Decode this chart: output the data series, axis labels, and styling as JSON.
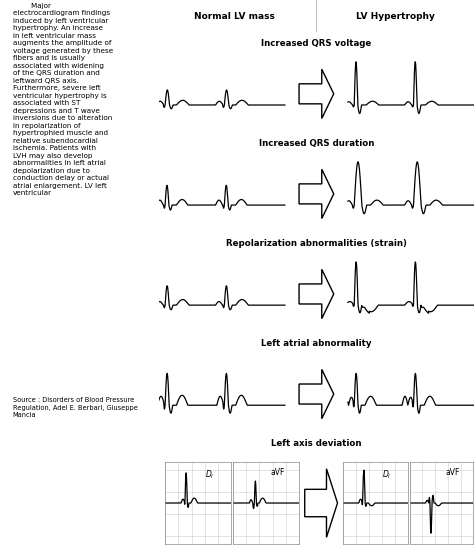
{
  "title_left": "        Major\nelectrocardiogram findings\ninduced by left ventricular\nhypertrophy. An increase\nin left ventricular mass\naugments the amplitude of\nvoltage generated by these\nfibers and is usually\nassociated with widening\nof the QRS duration and\nleftward QRS axis.\nFurthermore, severe left\nventricular hypertrophy is\nassociated with ST\ndepressions and T wave\ninversions due to alteration\nin repolarization of\nhypertrophied muscle and\nrelative subendocardial\nischemia. Patients with\nLVH may also develop\nabnormalities in left atrial\ndepolarization due to\nconduction delay or actual\natrial enlargement. LV left\nventricular",
  "source_text": "Source : Disorders of Blood Pressure\nRegulation, Adel E. Berbari, Giuseppe\nMancia",
  "col_header_normal": "Normal LV mass",
  "col_header_hypertrophy": "LV Hypertrophy",
  "row_titles": [
    "Increased QRS voltage",
    "Increased QRS duration",
    "Repolarization abnormalities (strain)",
    "Left atrial abnormality",
    "Left axis deviation"
  ],
  "bg_color": "#ffffff",
  "title_bar_bg": "#ebebeb",
  "header_bg": "#d8d8d8",
  "grid_bg": "#ffffff",
  "grid_line_color": "#cccccc",
  "ecg_lw": 0.9
}
